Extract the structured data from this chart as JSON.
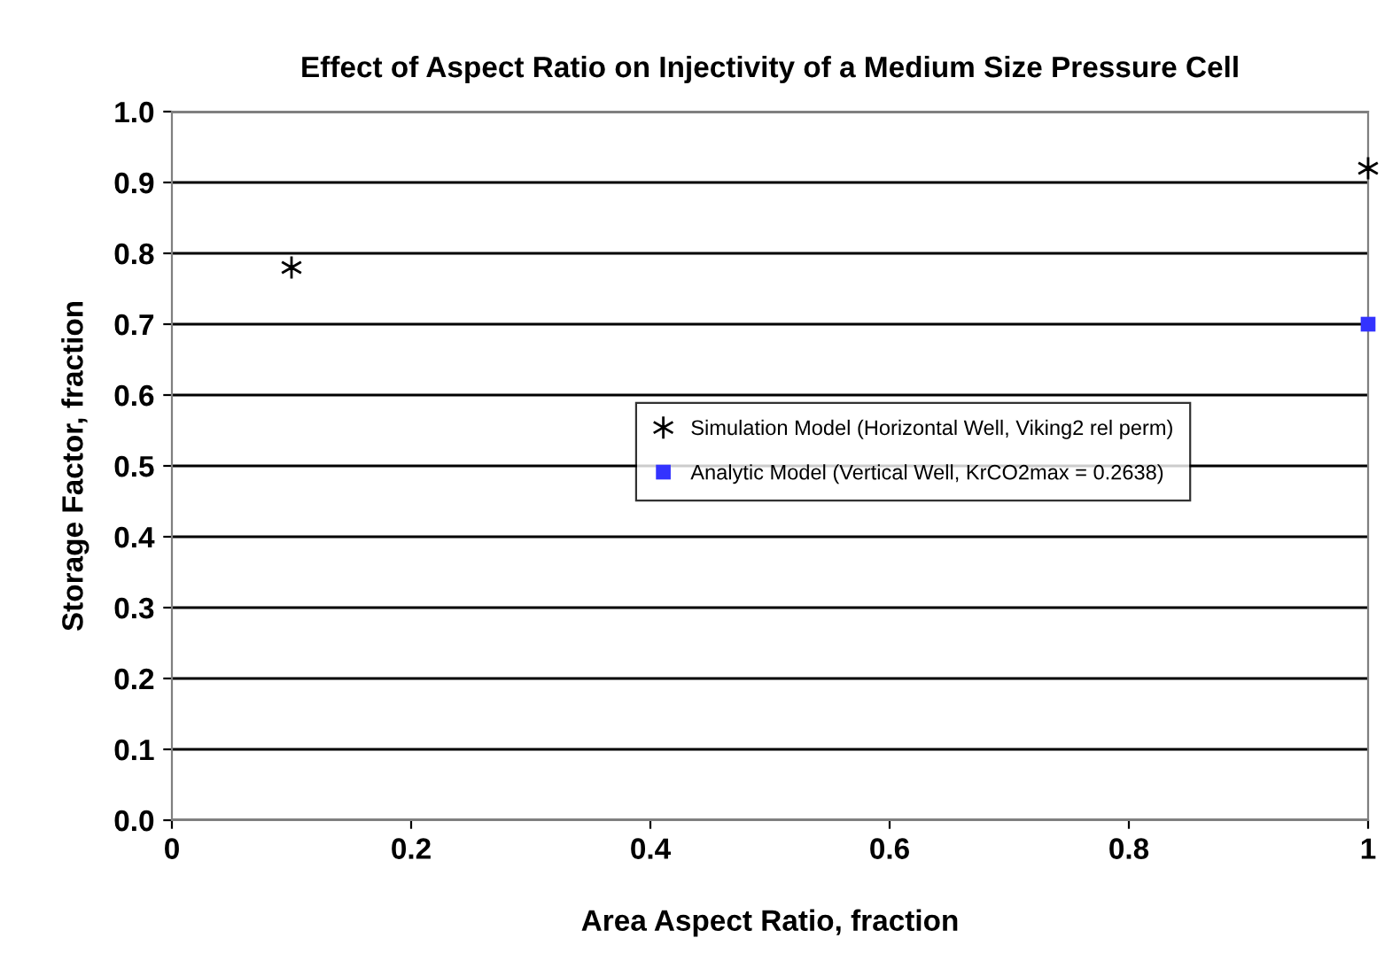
{
  "chart_data": {
    "type": "scatter",
    "title": "Effect of Aspect Ratio on Injectivity of a Medium Size Pressure Cell",
    "xlabel": "Area Aspect Ratio, fraction",
    "ylabel": "Storage Factor, fraction",
    "series": [
      {
        "name": "Simulation Model (Horizontal Well, Viking2 rel perm)",
        "color": "#000000",
        "marker": "cross",
        "values": [
          0.78,
          0.92
        ]
      },
      {
        "name": "Analytic Model (Vertical Well, KrCO2max = 0.2638)",
        "color": "#3333ff",
        "marker": "square",
        "values": [
          null,
          0.7
        ]
      }
    ],
    "x": [
      0.1,
      1
    ],
    "xlim": [
      0,
      1
    ],
    "xticks": [
      0,
      0.2,
      0.4,
      0.6,
      0.8,
      1
    ],
    "ylim": [
      0,
      1
    ],
    "yticks": [
      {
        "value": 0,
        "label": "0.0"
      },
      0.1,
      0.2,
      0.3,
      0.4,
      0.5,
      0.6,
      0.7,
      0.8,
      0.9,
      {
        "value": 1,
        "label": "1.0"
      }
    ],
    "grid": "y",
    "legend": "right"
  }
}
